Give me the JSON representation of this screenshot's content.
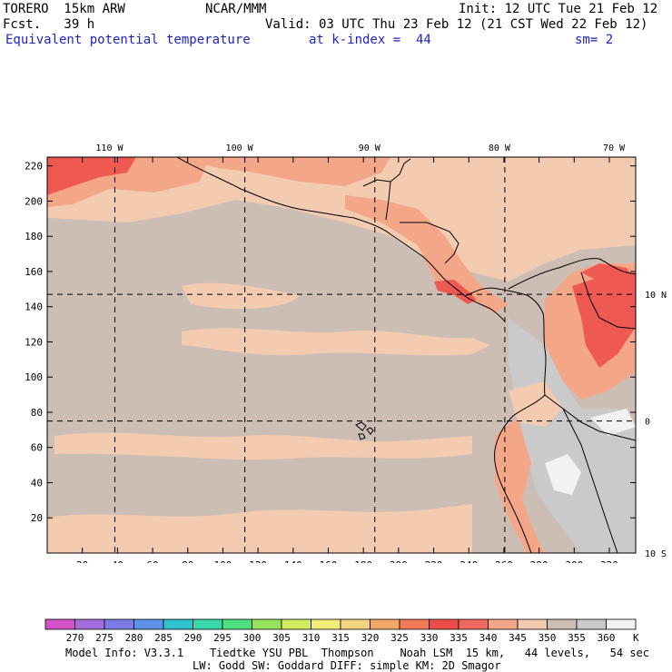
{
  "header": {
    "model": "TORERO  15km ARW",
    "org": "NCAR/MMM",
    "init": "Init: 12 UTC Tue 21 Feb 12",
    "fcst": "Fcst.   39 h",
    "valid": "Valid: 03 UTC Thu 23 Feb 12 (21 CST Wed 22 Feb 12)",
    "field": "Equivalent potential temperature",
    "level": "at k-index =  44",
    "smooth": "sm= 2"
  },
  "map": {
    "top_lon_labels": [
      "110 W",
      "100 W",
      "90 W",
      "80 W",
      "70 W"
    ],
    "right_lat_labels": [
      "10 N",
      "0",
      "10 S"
    ],
    "y_ticks": [
      "220",
      "200",
      "180",
      "160",
      "140",
      "120",
      "100",
      "80",
      "60",
      "40",
      "20"
    ],
    "x_ticks": [
      "20",
      "40",
      "60",
      "80",
      "100",
      "120",
      "140",
      "160",
      "180",
      "200",
      "220",
      "240",
      "260",
      "280",
      "300",
      "320"
    ],
    "x_range": [
      0,
      335
    ],
    "y_range": [
      0,
      225
    ],
    "grid_lon_x": [
      38.5,
      112.5,
      186.5,
      260.5
    ],
    "grid_lat_y": [
      147,
      75
    ],
    "colors": {
      "ocean": "#ccbdb5",
      "mid": "#f2cbb1",
      "warm": "#f4a788",
      "hot": "#ee5a52",
      "cold": "#cacaca",
      "snow": "#f2f2f2"
    }
  },
  "colorbar": {
    "labels": [
      "270",
      "275",
      "280",
      "285",
      "290",
      "295",
      "300",
      "305",
      "310",
      "315",
      "320",
      "325",
      "330",
      "335",
      "340",
      "345",
      "350",
      "355",
      "360"
    ],
    "unit": "K",
    "colors": [
      "#d252c8",
      "#a56cdc",
      "#7d7ce6",
      "#5c93e6",
      "#31c3cd",
      "#3ad7a8",
      "#4fe07e",
      "#96e35d",
      "#d1ec63",
      "#f2ee7c",
      "#f4d380",
      "#f3a769",
      "#ef7a55",
      "#ec4c48",
      "#ee6a5e",
      "#f4a788",
      "#f2cbb1",
      "#ccbdb5",
      "#cacaca",
      "#f2f2f2"
    ]
  },
  "footer": {
    "line1": "Model Info: V3.3.1    Tiedtke YSU PBL  Thompson    Noah LSM  15 km,   44 levels,   54 sec",
    "line2": "LW: Godd SW: Goddard DIFF: simple KM: 2D Smagor"
  }
}
